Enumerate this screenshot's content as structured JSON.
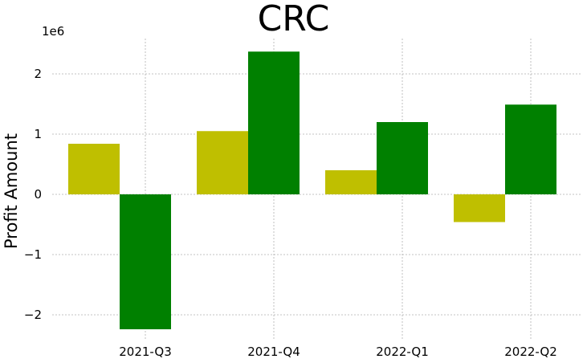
{
  "chart_data": {
    "type": "bar",
    "title": "CRC",
    "ylabel": "Profit Amount",
    "xlabel": "",
    "scale_note": "1e6",
    "categories": [
      "2021-Q3",
      "2021-Q4",
      "2022-Q1",
      "2022-Q2"
    ],
    "series": [
      {
        "color": "#bfbf00",
        "values": [
          840000,
          1050000,
          400000,
          -460000
        ]
      },
      {
        "color": "#008000",
        "values": [
          -2240000,
          2370000,
          1200000,
          1490000
        ]
      }
    ],
    "yticks": [
      -2,
      -1,
      0,
      1,
      2
    ],
    "ytick_labels": [
      "−2",
      "−1",
      "0",
      "1",
      "2"
    ],
    "ylim": [
      -2.45,
      2.6
    ],
    "grid": true
  }
}
